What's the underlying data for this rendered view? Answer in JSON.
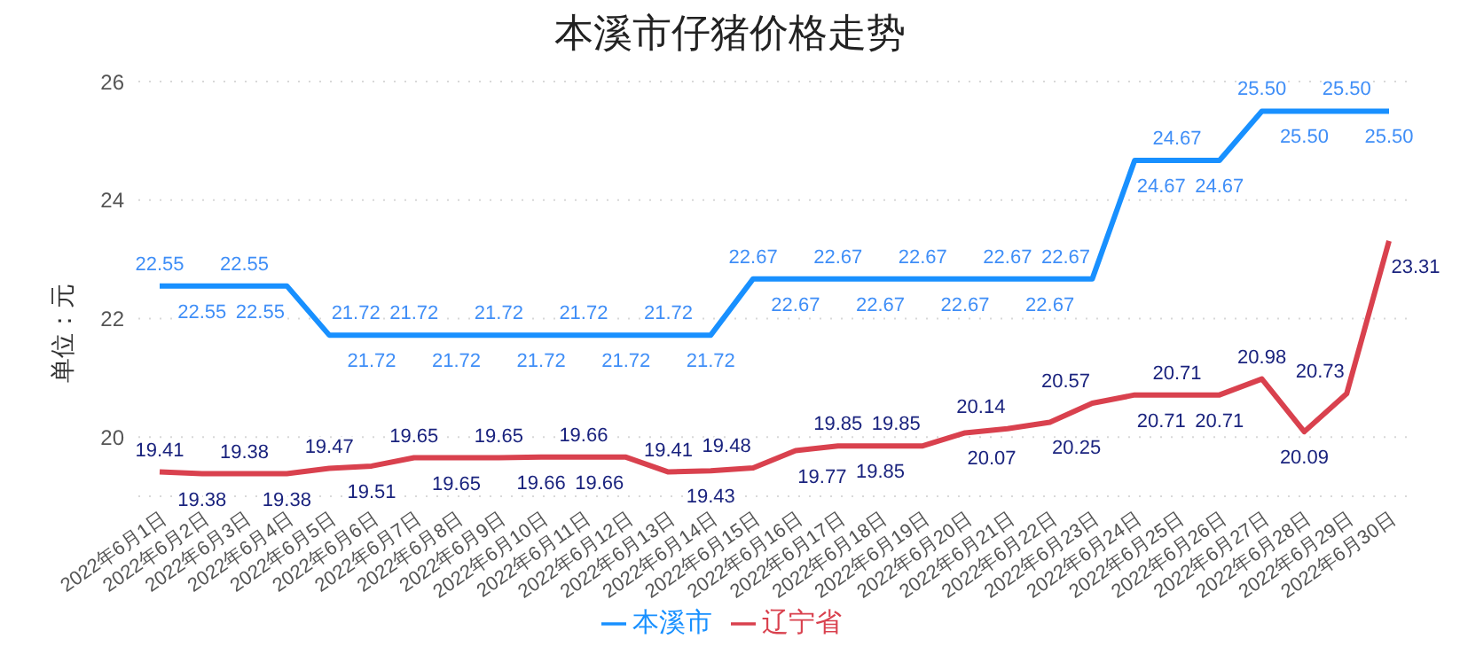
{
  "chart_data": {
    "type": "line",
    "title": "本溪市仔猪价格走势",
    "ylabel": "单位：元",
    "categories": [
      "2022年6月1日",
      "2022年6月2日",
      "2022年6月3日",
      "2022年6月4日",
      "2022年6月5日",
      "2022年6月6日",
      "2022年6月7日",
      "2022年6月8日",
      "2022年6月9日",
      "2022年6月10日",
      "2022年6月11日",
      "2022年6月12日",
      "2022年6月13日",
      "2022年6月14日",
      "2022年6月15日",
      "2022年6月16日",
      "2022年6月17日",
      "2022年6月18日",
      "2022年6月19日",
      "2022年6月20日",
      "2022年6月21日",
      "2022年6月22日",
      "2022年6月23日",
      "2022年6月24日",
      "2022年6月25日",
      "2022年6月26日",
      "2022年6月27日",
      "2022年6月28日",
      "2022年6月29日",
      "2022年6月30日"
    ],
    "series": [
      {
        "name": "本溪市",
        "color": "#1890ff",
        "values": [
          22.55,
          22.55,
          22.55,
          22.55,
          21.72,
          21.72,
          21.72,
          21.72,
          21.72,
          21.72,
          21.72,
          21.72,
          21.72,
          21.72,
          22.67,
          22.67,
          22.67,
          22.67,
          22.67,
          22.67,
          22.67,
          22.67,
          22.67,
          24.67,
          24.67,
          24.67,
          25.5,
          25.5,
          25.5,
          25.5
        ],
        "value_labels": [
          "22.55",
          "22.55",
          "22.55",
          "22.55",
          "21.72",
          "21.72",
          "21.72",
          "21.72",
          "21.72",
          "21.72",
          "21.72",
          "21.72",
          "21.72",
          "21.72",
          "22.67",
          "22.67",
          "22.67",
          "22.67",
          "22.67",
          "22.67",
          "22.67",
          "22.67",
          "22.67",
          "24.67",
          "24.67",
          "24.67",
          "25.50",
          "25.50",
          "25.50",
          "25.50"
        ]
      },
      {
        "name": "辽宁省",
        "color": "#d9414e",
        "values": [
          19.41,
          19.38,
          19.38,
          19.38,
          19.47,
          19.51,
          19.65,
          19.65,
          19.65,
          19.66,
          19.66,
          19.66,
          19.41,
          19.43,
          19.48,
          19.77,
          19.85,
          19.85,
          19.85,
          20.07,
          20.14,
          20.25,
          20.57,
          20.71,
          20.71,
          20.71,
          20.98,
          20.09,
          20.73,
          23.31
        ],
        "value_labels": [
          "19.41",
          "19.38",
          "19.38",
          "19.38",
          "19.47",
          "19.51",
          "19.65",
          "19.65",
          "19.65",
          "19.66",
          "19.66",
          "19.66",
          "19.41",
          "19.43",
          "19.48",
          "19.77",
          "19.85",
          "19.85",
          "19.85",
          "20.07",
          "20.14",
          "20.25",
          "20.57",
          "20.71",
          "20.71",
          "20.71",
          "20.98",
          "20.09",
          "20.73",
          "23.31"
        ]
      }
    ],
    "ylim": [
      19,
      26
    ],
    "yticks": [
      20,
      22,
      24,
      26
    ],
    "grid": "y",
    "legend": "bottom",
    "marker": "none",
    "line_style": "solid"
  }
}
